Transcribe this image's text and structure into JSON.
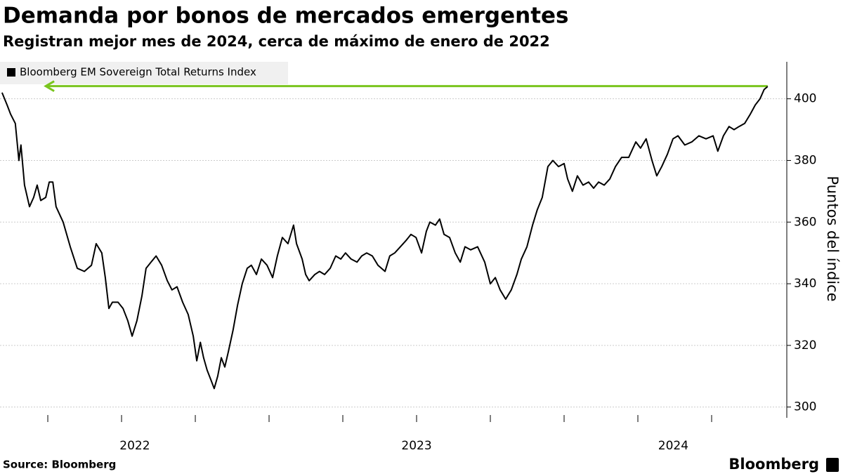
{
  "chart_data": {
    "type": "line",
    "title": "Demanda por bonos de mercados emergentes",
    "subtitle": "Registran mejor mes de 2024, cerca de máximo de enero de 2022",
    "y_label": "Puntos del índice",
    "source": "Source: Bloomberg",
    "brand": "Bloomberg",
    "xlim": [
      2022.088,
      2024.731
    ],
    "xticks": [
      {
        "value": 2022.545,
        "label": "2022"
      },
      {
        "value": 2023.5,
        "label": "2023"
      },
      {
        "value": 2024.37,
        "label": "2024"
      }
    ],
    "x_tick_marks": [
      2022.25,
      2022.5,
      2022.75,
      2023,
      2023.25,
      2023.5,
      2023.75,
      2024,
      2024.25,
      2024.5
    ],
    "ylim": [
      296.5,
      412
    ],
    "yticks": [
      300,
      320,
      340,
      360,
      380,
      400
    ],
    "grid": true,
    "reference_line": {
      "value": 404.1,
      "x": [
        2022.243,
        2024.69
      ],
      "color": "#7ac51f"
    },
    "series": [
      {
        "name": "Bloomberg EM Sovereign Total Returns Index",
        "color": "#000000",
        "x": [
          2022.095,
          2022.112,
          2022.124,
          2022.14,
          2022.152,
          2022.159,
          2022.171,
          2022.188,
          2022.202,
          2022.214,
          2022.226,
          2022.243,
          2022.255,
          2022.267,
          2022.278,
          2022.302,
          2022.326,
          2022.35,
          2022.374,
          2022.398,
          2022.414,
          2022.433,
          2022.445,
          2022.457,
          2022.469,
          2022.488,
          2022.505,
          2022.521,
          2022.536,
          2022.552,
          2022.569,
          2022.583,
          2022.6,
          2022.617,
          2022.636,
          2022.655,
          2022.671,
          2022.688,
          2022.707,
          2022.726,
          2022.743,
          2022.755,
          2022.767,
          2022.778,
          2022.79,
          2022.802,
          2022.814,
          2022.826,
          2022.838,
          2022.85,
          2022.862,
          2022.878,
          2022.893,
          2022.909,
          2022.926,
          2022.94,
          2022.957,
          2022.974,
          2022.993,
          2023.012,
          2023.028,
          2023.045,
          2023.064,
          2023.083,
          2023.093,
          2023.112,
          2023.124,
          2023.136,
          2023.155,
          2023.171,
          2023.188,
          2023.207,
          2023.226,
          2023.243,
          2023.259,
          2023.278,
          2023.298,
          2023.314,
          2023.331,
          2023.35,
          2023.369,
          2023.393,
          2023.409,
          2023.426,
          2023.445,
          2023.464,
          2023.481,
          2023.498,
          2023.517,
          2023.533,
          2023.545,
          2023.564,
          2023.578,
          2023.593,
          2023.612,
          2023.631,
          2023.648,
          2023.664,
          2023.683,
          2023.707,
          2023.731,
          2023.75,
          2023.767,
          2023.783,
          2023.802,
          2023.821,
          2023.84,
          2023.855,
          2023.874,
          2023.893,
          2023.909,
          2023.926,
          2023.945,
          2023.962,
          2023.981,
          2024.0,
          2024.012,
          2024.028,
          2024.045,
          2024.064,
          2024.083,
          2024.1,
          2024.117,
          2024.136,
          2024.155,
          2024.174,
          2024.195,
          2024.219,
          2024.243,
          2024.259,
          2024.278,
          2024.298,
          2024.314,
          2024.331,
          2024.35,
          2024.369,
          2024.386,
          2024.409,
          2024.433,
          2024.457,
          2024.481,
          2024.505,
          2024.521,
          2024.54,
          2024.559,
          2024.576,
          2024.593,
          2024.612,
          2024.631,
          2024.648,
          2024.664,
          2024.678,
          2024.69
        ],
        "values": [
          402,
          398,
          395,
          392,
          380,
          385,
          372,
          365,
          368,
          372,
          367,
          368,
          373,
          373,
          365,
          360,
          352,
          345,
          344,
          346,
          353,
          350,
          342,
          332,
          334,
          334,
          332,
          328,
          323,
          328,
          336,
          345,
          347,
          349,
          346,
          341,
          338,
          339,
          334,
          330,
          323,
          315,
          321,
          316,
          312,
          309,
          306,
          310,
          316,
          313,
          318,
          325,
          333,
          340,
          345,
          346,
          343,
          348,
          346,
          342,
          349,
          355,
          353,
          359,
          353,
          348,
          343,
          341,
          343,
          344,
          343,
          345,
          349,
          348,
          350,
          348,
          347,
          349,
          350,
          349,
          346,
          344,
          349,
          350,
          352,
          354,
          356,
          355,
          350,
          357,
          360,
          359,
          361,
          356,
          355,
          350,
          347,
          352,
          351,
          352,
          347,
          340,
          342,
          338,
          335,
          338,
          343,
          348,
          352,
          359,
          364,
          368,
          378,
          380,
          378,
          379,
          374,
          370,
          375,
          372,
          373,
          371,
          373,
          372,
          374,
          378,
          381,
          381,
          386,
          384,
          387,
          380,
          375,
          378,
          382,
          387,
          388,
          385,
          386,
          388,
          387,
          388,
          383,
          388,
          391,
          390,
          391,
          392,
          395,
          398,
          400,
          403,
          404
        ]
      }
    ]
  }
}
